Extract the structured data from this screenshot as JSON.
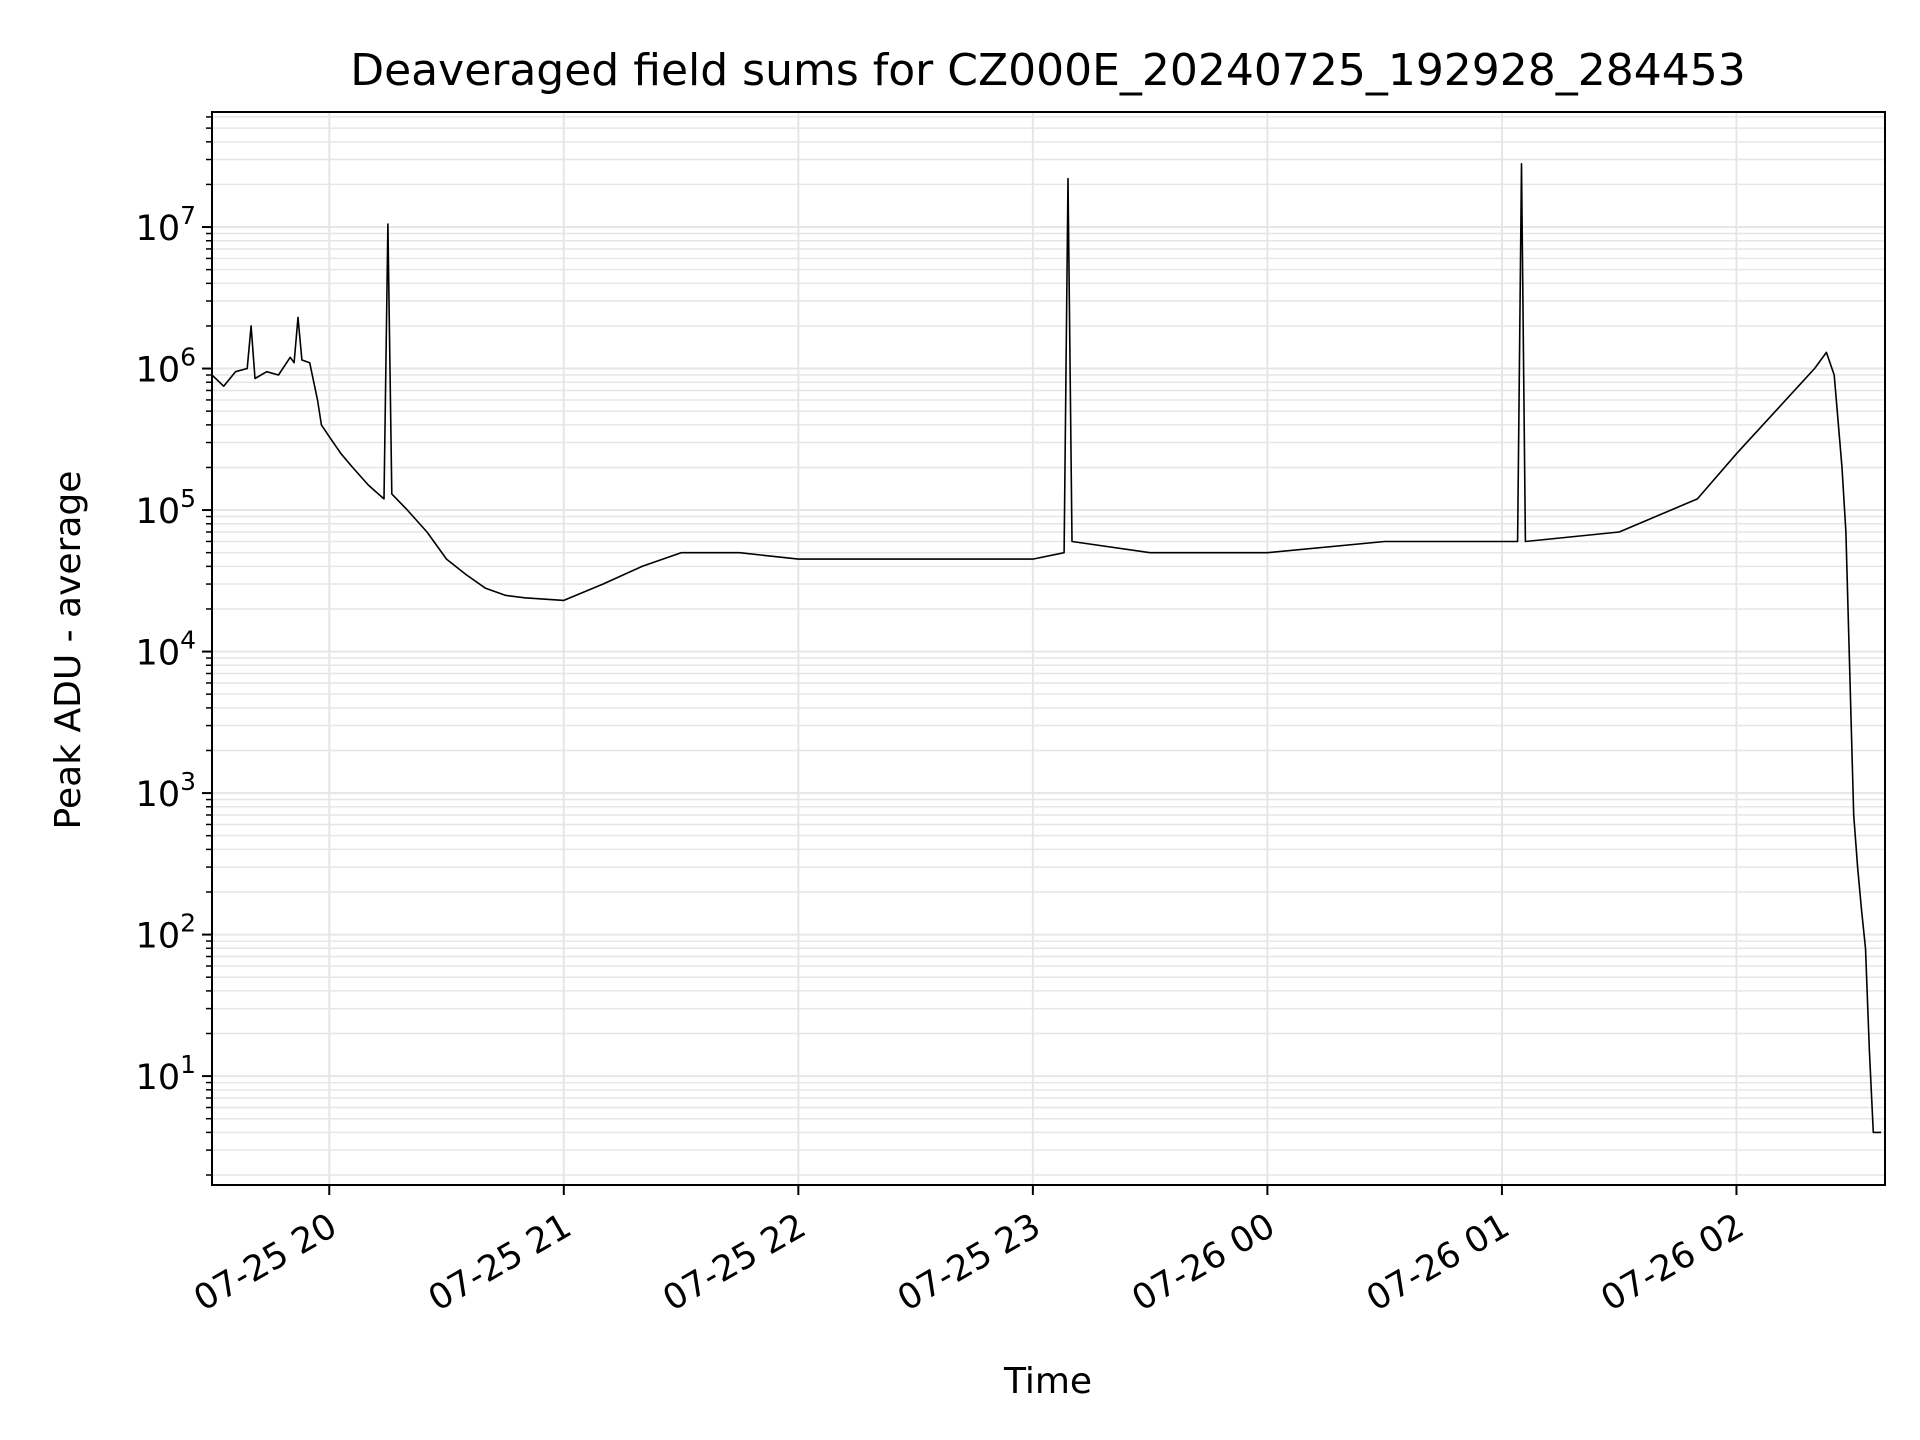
{
  "chart_data": {
    "type": "line",
    "title": "Deaveraged field sums for CZ000E_20240725_192928_284453",
    "xlabel": "Time",
    "ylabel": "Peak ADU - average",
    "yscale": "log",
    "xlim": [
      "2024-07-25 19:30",
      "2024-07-26 02:38"
    ],
    "ylim": [
      1.7,
      65000000
    ],
    "grid": true,
    "line_color": "#000000",
    "grid_color": "#e6e6e6",
    "x_ticks": [
      {
        "t": "2024-07-25 20:00",
        "label": "07-25 20"
      },
      {
        "t": "2024-07-25 21:00",
        "label": "07-25 21"
      },
      {
        "t": "2024-07-25 22:00",
        "label": "07-25 22"
      },
      {
        "t": "2024-07-25 23:00",
        "label": "07-25 23"
      },
      {
        "t": "2024-07-26 00:00",
        "label": "07-26 00"
      },
      {
        "t": "2024-07-26 01:00",
        "label": "07-26 01"
      },
      {
        "t": "2024-07-26 02:00",
        "label": "07-26 02"
      }
    ],
    "y_ticks": [
      {
        "value": 10,
        "base": "10",
        "exp": "1"
      },
      {
        "value": 100,
        "base": "10",
        "exp": "2"
      },
      {
        "value": 1000,
        "base": "10",
        "exp": "3"
      },
      {
        "value": 10000,
        "base": "10",
        "exp": "4"
      },
      {
        "value": 100000,
        "base": "10",
        "exp": "5"
      },
      {
        "value": 1000000,
        "base": "10",
        "exp": "6"
      },
      {
        "value": 10000000,
        "base": "10",
        "exp": "7"
      }
    ],
    "series": [
      {
        "points": [
          [
            "2024-07-25 19:30",
            900000
          ],
          [
            "2024-07-25 19:33",
            750000
          ],
          [
            "2024-07-25 19:36",
            950000
          ],
          [
            "2024-07-25 19:39",
            1000000
          ],
          [
            "2024-07-25 19:40",
            2000000
          ],
          [
            "2024-07-25 19:41",
            850000
          ],
          [
            "2024-07-25 19:44",
            950000
          ],
          [
            "2024-07-25 19:47",
            900000
          ],
          [
            "2024-07-25 19:50",
            1200000
          ],
          [
            "2024-07-25 19:51",
            1100000
          ],
          [
            "2024-07-25 19:52",
            2300000
          ],
          [
            "2024-07-25 19:53",
            1150000
          ],
          [
            "2024-07-25 19:55",
            1100000
          ],
          [
            "2024-07-25 19:57",
            600000
          ],
          [
            "2024-07-25 19:58",
            400000
          ],
          [
            "2024-07-25 20:00",
            330000
          ],
          [
            "2024-07-25 20:03",
            250000
          ],
          [
            "2024-07-25 20:06",
            200000
          ],
          [
            "2024-07-25 20:10",
            150000
          ],
          [
            "2024-07-25 20:14",
            120000
          ],
          [
            "2024-07-25 20:15",
            10500000
          ],
          [
            "2024-07-25 20:16",
            130000
          ],
          [
            "2024-07-25 20:20",
            100000
          ],
          [
            "2024-07-25 20:25",
            70000
          ],
          [
            "2024-07-25 20:30",
            45000
          ],
          [
            "2024-07-25 20:35",
            35000
          ],
          [
            "2024-07-25 20:40",
            28000
          ],
          [
            "2024-07-25 20:45",
            25000
          ],
          [
            "2024-07-25 20:50",
            24000
          ],
          [
            "2024-07-25 21:00",
            23000
          ],
          [
            "2024-07-25 21:10",
            30000
          ],
          [
            "2024-07-25 21:20",
            40000
          ],
          [
            "2024-07-25 21:30",
            50000
          ],
          [
            "2024-07-25 21:45",
            50000
          ],
          [
            "2024-07-25 22:00",
            45000
          ],
          [
            "2024-07-25 22:30",
            45000
          ],
          [
            "2024-07-25 23:00",
            45000
          ],
          [
            "2024-07-25 23:08",
            50000
          ],
          [
            "2024-07-25 23:09",
            22000000
          ],
          [
            "2024-07-25 23:10",
            60000
          ],
          [
            "2024-07-25 23:30",
            50000
          ],
          [
            "2024-07-26 00:00",
            50000
          ],
          [
            "2024-07-26 00:30",
            60000
          ],
          [
            "2024-07-26 01:00",
            60000
          ],
          [
            "2024-07-26 01:04",
            60000
          ],
          [
            "2024-07-26 01:05",
            28000000
          ],
          [
            "2024-07-26 01:06",
            60000
          ],
          [
            "2024-07-26 01:30",
            70000
          ],
          [
            "2024-07-26 01:50",
            120000
          ],
          [
            "2024-07-26 02:00",
            250000
          ],
          [
            "2024-07-26 02:10",
            500000
          ],
          [
            "2024-07-26 02:20",
            1000000
          ],
          [
            "2024-07-26 02:23",
            1300000
          ],
          [
            "2024-07-26 02:25",
            900000
          ],
          [
            "2024-07-26 02:27",
            200000
          ],
          [
            "2024-07-26 02:28",
            70000
          ],
          [
            "2024-07-26 02:30",
            700
          ],
          [
            "2024-07-26 02:31",
            300
          ],
          [
            "2024-07-26 02:32",
            150
          ],
          [
            "2024-07-26 02:33",
            80
          ],
          [
            "2024-07-26 02:34",
            15
          ],
          [
            "2024-07-26 02:35",
            4
          ],
          [
            "2024-07-26 02:37",
            4
          ]
        ]
      }
    ]
  }
}
